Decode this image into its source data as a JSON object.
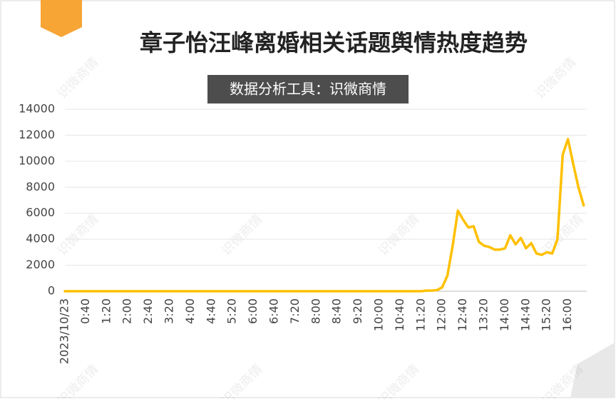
{
  "chart_data": {
    "type": "line",
    "title": "章子怡汪峰离婚相关话题舆情热度趋势",
    "subtitle": "数据分析工具：识微商情",
    "watermark": "识微商情",
    "categories": [
      "2023/10/23",
      null,
      null,
      null,
      "0:40",
      null,
      null,
      null,
      "1:20",
      null,
      null,
      null,
      "2:00",
      null,
      null,
      null,
      "2:40",
      null,
      null,
      null,
      "3:20",
      null,
      null,
      null,
      "4:00",
      null,
      null,
      null,
      "4:40",
      null,
      null,
      null,
      "5:20",
      null,
      null,
      null,
      "6:00",
      null,
      null,
      null,
      "6:40",
      null,
      null,
      null,
      "7:20",
      null,
      null,
      null,
      "8:00",
      null,
      null,
      null,
      "8:40",
      null,
      null,
      null,
      "9:20",
      null,
      null,
      null,
      "10:00",
      null,
      null,
      null,
      "10:40",
      null,
      null,
      null,
      "11:20",
      null,
      null,
      null,
      "12:00",
      null,
      null,
      null,
      "12:40",
      null,
      null,
      null,
      "13:20",
      null,
      null,
      null,
      "14:00",
      null,
      null,
      null,
      "14:40",
      null,
      null,
      null,
      "15:20",
      null,
      null,
      null,
      "16:00",
      null,
      null,
      null
    ],
    "series": [
      {
        "color": "#ffc000",
        "values": [
          0,
          0,
          0,
          0,
          0,
          0,
          0,
          0,
          0,
          0,
          0,
          0,
          0,
          0,
          0,
          0,
          0,
          0,
          0,
          0,
          0,
          0,
          0,
          0,
          0,
          0,
          0,
          0,
          0,
          0,
          0,
          0,
          0,
          0,
          0,
          0,
          0,
          0,
          0,
          0,
          0,
          0,
          0,
          0,
          0,
          0,
          0,
          0,
          0,
          0,
          0,
          0,
          0,
          0,
          0,
          0,
          0,
          0,
          0,
          0,
          0,
          0,
          0,
          0,
          0,
          0,
          0,
          0,
          0,
          50,
          50,
          80,
          300,
          1200,
          3500,
          6200,
          5500,
          4900,
          5000,
          3800,
          3500,
          3400,
          3200,
          3200,
          3300,
          4300,
          3600,
          4100,
          3300,
          3700,
          2900,
          2800,
          3000,
          2900,
          4000,
          10500,
          11700,
          9800,
          8000,
          6600
        ]
      }
    ],
    "ylim": [
      0,
      14000
    ],
    "yticks": [
      0,
      2000,
      4000,
      6000,
      8000,
      10000,
      12000,
      14000
    ],
    "grid": true
  }
}
